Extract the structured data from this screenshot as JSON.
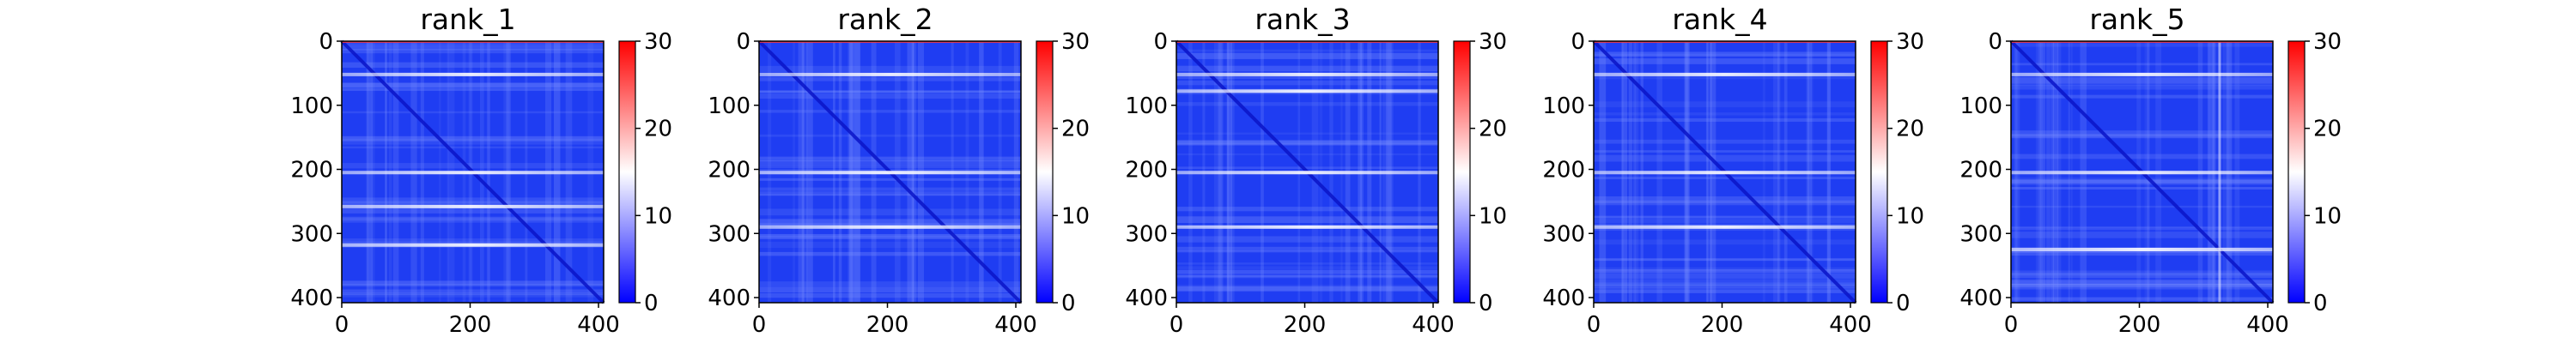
{
  "chart_data": [
    {
      "type": "heatmap",
      "title": "rank_1",
      "x_ticks": [
        0,
        200,
        400
      ],
      "y_ticks": [
        0,
        100,
        200,
        300,
        400
      ],
      "xlim": [
        0,
        408
      ],
      "ylim": [
        408,
        0
      ],
      "color_range": [
        0,
        30
      ],
      "colorbar_ticks": [
        0,
        10,
        20,
        30
      ],
      "colormap": {
        "low": "#0000ff",
        "mid": "#ffffff",
        "high": "#ff0000"
      },
      "bright_rows": [
        52,
        205,
        258,
        318
      ],
      "bright_cols": [],
      "diagonal": true
    },
    {
      "type": "heatmap",
      "title": "rank_2",
      "x_ticks": [
        0,
        200,
        400
      ],
      "y_ticks": [
        0,
        100,
        200,
        300,
        400
      ],
      "xlim": [
        0,
        408
      ],
      "ylim": [
        408,
        0
      ],
      "color_range": [
        0,
        30
      ],
      "colorbar_ticks": [
        0,
        10,
        20,
        30
      ],
      "colormap": {
        "low": "#0000ff",
        "mid": "#ffffff",
        "high": "#ff0000"
      },
      "bright_rows": [
        52,
        205,
        290
      ],
      "bright_cols": [],
      "diagonal": true
    },
    {
      "type": "heatmap",
      "title": "rank_3",
      "x_ticks": [
        0,
        200,
        400
      ],
      "y_ticks": [
        0,
        100,
        200,
        300,
        400
      ],
      "xlim": [
        0,
        408
      ],
      "ylim": [
        408,
        0
      ],
      "color_range": [
        0,
        30
      ],
      "colorbar_ticks": [
        0,
        10,
        20,
        30
      ],
      "colormap": {
        "low": "#0000ff",
        "mid": "#ffffff",
        "high": "#ff0000"
      },
      "bright_rows": [
        52,
        78,
        205,
        290
      ],
      "bright_cols": [],
      "diagonal": true
    },
    {
      "type": "heatmap",
      "title": "rank_4",
      "x_ticks": [
        0,
        200,
        400
      ],
      "y_ticks": [
        0,
        100,
        200,
        300,
        400
      ],
      "xlim": [
        0,
        408
      ],
      "ylim": [
        408,
        0
      ],
      "color_range": [
        0,
        30
      ],
      "colorbar_ticks": [
        0,
        10,
        20,
        30
      ],
      "colormap": {
        "low": "#0000ff",
        "mid": "#ffffff",
        "high": "#ff0000"
      },
      "bright_rows": [
        52,
        205,
        290
      ],
      "bright_cols": [],
      "diagonal": true
    },
    {
      "type": "heatmap",
      "title": "rank_5",
      "x_ticks": [
        0,
        200,
        400
      ],
      "y_ticks": [
        0,
        100,
        200,
        300,
        400
      ],
      "xlim": [
        0,
        408
      ],
      "ylim": [
        408,
        0
      ],
      "color_range": [
        0,
        30
      ],
      "colorbar_ticks": [
        0,
        10,
        20,
        30
      ],
      "colormap": {
        "low": "#0000ff",
        "mid": "#ffffff",
        "high": "#ff0000"
      },
      "bright_rows": [
        52,
        205,
        325
      ],
      "bright_cols": [
        325
      ],
      "diagonal": true
    }
  ]
}
